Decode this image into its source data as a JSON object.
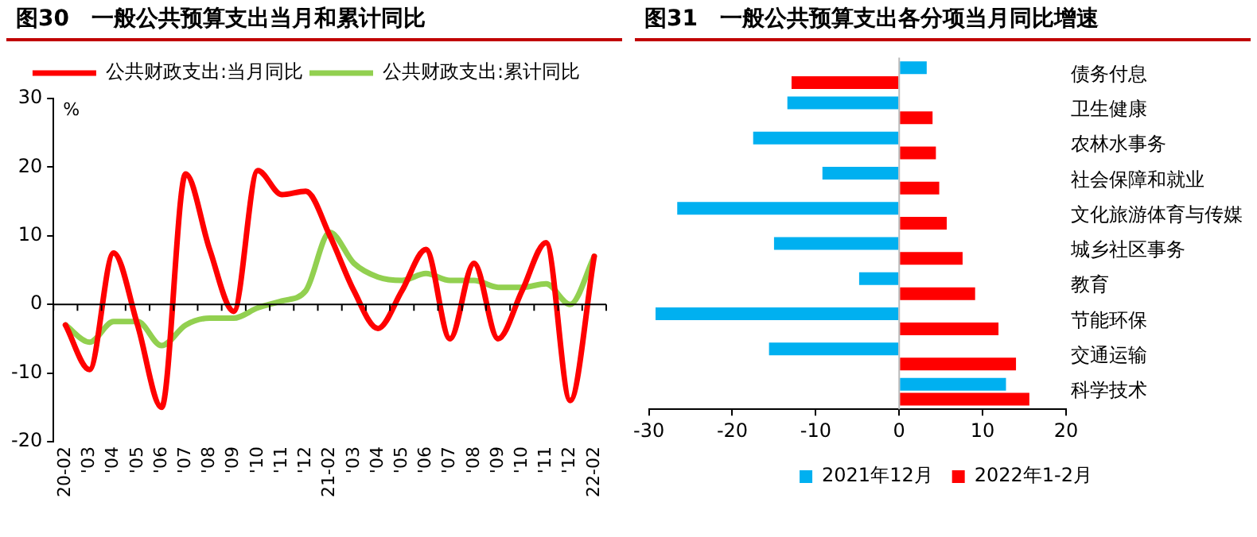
{
  "chart_data": [
    {
      "type": "line",
      "title": "图30　一般公共预算支出当月和累计同比",
      "ylabel": "%",
      "categories": [
        "20-02",
        "'03",
        "'04",
        "'05",
        "'06",
        "'07",
        "'08",
        "'09",
        "'10",
        "'11",
        "'12",
        "21-02",
        "'03",
        "'04",
        "'05",
        "'06",
        "'07",
        "'08",
        "'09",
        "'10",
        "'11",
        "'12",
        "22-02"
      ],
      "series": [
        {
          "name": "公共财政支出:当月同比",
          "color": "#ff0000",
          "values": [
            -3,
            -9.5,
            7.5,
            -3,
            -15,
            19,
            8,
            -1,
            19.5,
            16,
            16.5,
            10,
            2,
            -3.5,
            2,
            8,
            -5,
            6,
            -5,
            2,
            9,
            -14,
            7
          ]
        },
        {
          "name": "公共财政支出:累计同比",
          "color": "#92d050",
          "values": [
            -3,
            -5.5,
            -2.5,
            -2.5,
            -6,
            -3,
            -2,
            -2,
            -0.5,
            0.5,
            2,
            10.5,
            6,
            4,
            3.5,
            4.5,
            3.5,
            3.5,
            2.5,
            2.5,
            3,
            0,
            7
          ]
        }
      ],
      "ylim": [
        -20,
        30
      ],
      "yticks": [
        -20,
        -10,
        0,
        10,
        20,
        30
      ],
      "ref_lines": [
        {
          "axis": "y",
          "value": 0,
          "color": "#000000"
        }
      ],
      "grid": false,
      "legend": "top",
      "marker": "none",
      "line_style": "solid"
    },
    {
      "type": "bar",
      "orientation": "horizontal",
      "title": "图31　一般公共预算支出各分项当月同比增速",
      "categories": [
        "债务付息",
        "卫生健康",
        "农林水事务",
        "社会保障和就业",
        "文化旅游体育与传媒",
        "城乡社区事务",
        "教育",
        "节能环保",
        "交通运输",
        "科学技术"
      ],
      "series": [
        {
          "name": "2021年12月",
          "color": "#00b0f0",
          "values": [
            3.3,
            -13.4,
            -17.5,
            -9.2,
            -26.6,
            -15,
            -4.8,
            -29.2,
            -15.6,
            12.8
          ]
        },
        {
          "name": "2022年1-2月",
          "color": "#ff0000",
          "values": [
            -12.9,
            4,
            4.4,
            4.8,
            5.7,
            7.6,
            9.1,
            11.9,
            14,
            15.6
          ]
        }
      ],
      "xlim": [
        -30,
        20
      ],
      "xticks": [
        -30,
        -20,
        -10,
        0,
        10,
        20
      ],
      "ref_lines": [
        {
          "axis": "x",
          "value": 0,
          "color": "#bbbbbb"
        }
      ],
      "grid": false,
      "legend": "bottom"
    }
  ]
}
